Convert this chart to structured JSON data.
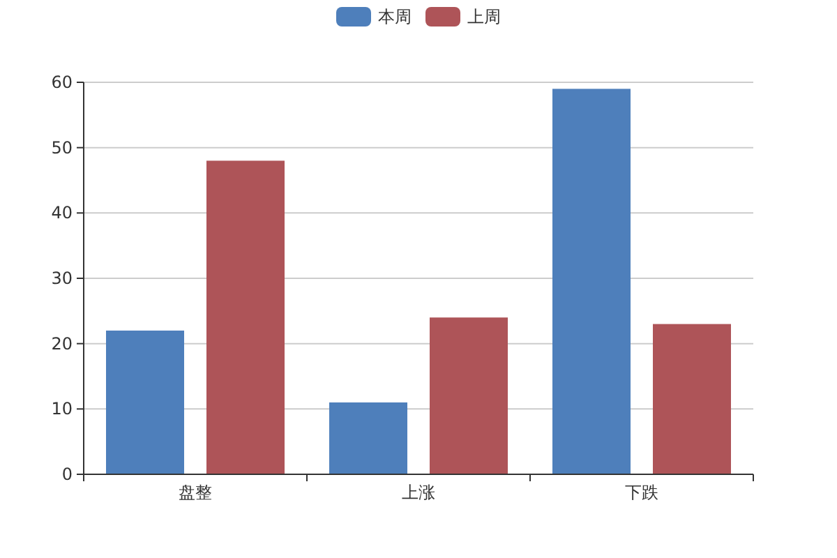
{
  "chart_data": {
    "type": "bar",
    "categories": [
      "盘整",
      "上涨",
      "下跌"
    ],
    "series": [
      {
        "name": "本周",
        "color": "#4e7fbb",
        "values": [
          22,
          11,
          59
        ]
      },
      {
        "name": "上周",
        "color": "#ae5458",
        "values": [
          48,
          24,
          23
        ]
      }
    ],
    "ylim": [
      0,
      60
    ],
    "yticks": [
      0,
      10,
      20,
      30,
      40,
      50,
      60
    ],
    "grid": "y",
    "legend": "top"
  }
}
